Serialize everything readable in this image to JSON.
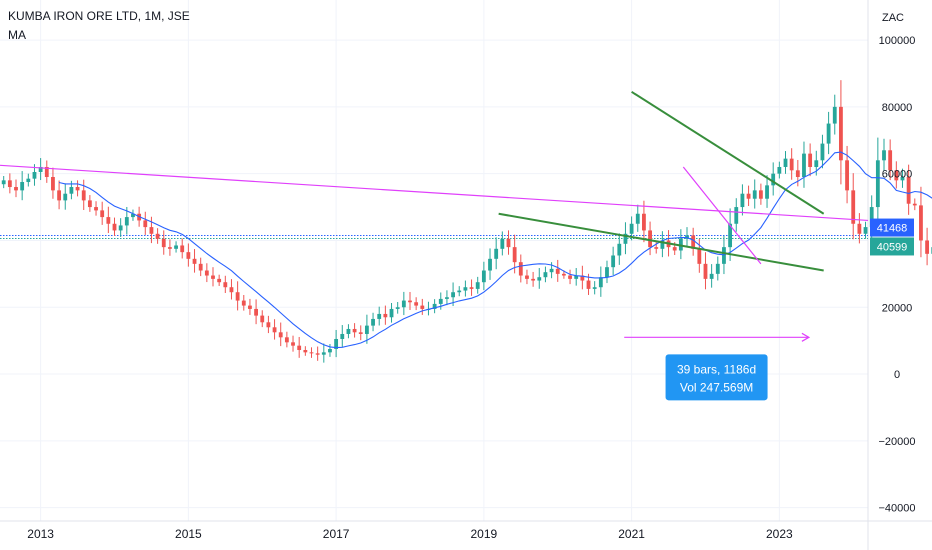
{
  "header": {
    "title": "KUMBA IRON ORE LTD, 1M, JSE",
    "indicator": "MA"
  },
  "colors": {
    "up": "#26a69a",
    "down": "#ef5350",
    "ma": "#2962ff",
    "trendline_green": "#388e3c",
    "trendline_magenta": "#e040fb",
    "price_line_blue": "#2962ff",
    "price_line_teal": "#26a69a",
    "callout_bg": "#2196f3",
    "measure_arrow": "#e040fb"
  },
  "chart_data": {
    "type": "candlestick",
    "currency": "ZAC",
    "ylim": [
      -44000,
      112000
    ],
    "y_ticks": [
      100000,
      80000,
      60000,
      40000,
      20000,
      0,
      -20000,
      -40000
    ],
    "y_tick_labels": [
      "100000",
      "80000",
      "60000",
      "",
      "20000",
      "0",
      "−20000",
      "−40000"
    ],
    "x_ticks": [
      2013,
      2015,
      2017,
      2019,
      2021,
      2023
    ],
    "x_tick_labels": [
      "2013",
      "2015",
      "2017",
      "2019",
      "2021",
      "2023"
    ],
    "xlim": [
      2012.45,
      2024.2
    ],
    "grid": true,
    "price_labels": [
      {
        "value": 41468,
        "label": "41468",
        "color": "#2962ff"
      },
      {
        "value": 40599,
        "label": "40599",
        "color": "#26a69a"
      }
    ],
    "closes": [
      58000,
      56000,
      55000,
      57500,
      58500,
      60500,
      62000,
      59000,
      55000,
      52000,
      54000,
      56000,
      55000,
      52000,
      50000,
      49000,
      47000,
      45000,
      43000,
      44500,
      47000,
      48000,
      46000,
      44000,
      42000,
      40500,
      38000,
      37500,
      38500,
      36500,
      34500,
      33000,
      31000,
      29500,
      28500,
      27500,
      26000,
      24500,
      22000,
      20500,
      19500,
      17500,
      15500,
      14000,
      12500,
      11000,
      9500,
      8500,
      7200,
      6500,
      6200,
      5800,
      6500,
      7500,
      10500,
      12000,
      13500,
      12500,
      12000,
      14500,
      16500,
      18000,
      17000,
      19500,
      20000,
      22000,
      21500,
      20500,
      19500,
      19500,
      21000,
      22500,
      23000,
      24500,
      25000,
      26000,
      25500,
      27500,
      31000,
      34500,
      37500,
      40500,
      38000,
      33500,
      29500,
      28500,
      28000,
      29000,
      30500,
      31500,
      30000,
      29500,
      28500,
      29500,
      28000,
      25500,
      26000,
      29000,
      32000,
      35500,
      39000,
      42000,
      45000,
      48000,
      43000,
      38000,
      37500,
      40000,
      38000,
      37000,
      40500,
      41500,
      37500,
      33000,
      28500,
      30000,
      33000,
      38000,
      45000,
      50000,
      54000,
      52500,
      55000,
      52500,
      56500,
      60000,
      62000,
      64500,
      61000,
      59000,
      66000,
      62000,
      64000,
      69000,
      75000,
      80000,
      64000,
      55000,
      45000,
      42000,
      44000,
      50000,
      64000,
      67000,
      61000,
      58000,
      59000,
      51000,
      50500,
      40000,
      36000,
      38000,
      40599
    ],
    "ma_period": 10,
    "trendlines": [
      {
        "name": "long-resistance",
        "color": "#e040fb",
        "from": [
          2012.45,
          62500
        ],
        "to": [
          2024.2,
          46000
        ]
      },
      {
        "name": "upper-wedge",
        "color": "#388e3c",
        "from": [
          2021.0,
          84500
        ],
        "to": [
          2023.6,
          48000
        ]
      },
      {
        "name": "lower-wedge",
        "color": "#388e3c",
        "from": [
          2019.2,
          48000
        ],
        "to": [
          2023.6,
          31000
        ]
      },
      {
        "name": "short-down",
        "color": "#e040fb",
        "from": [
          2021.7,
          62000
        ],
        "to": [
          2022.75,
          33000
        ]
      }
    ],
    "measure": {
      "from": [
        2020.9,
        11000
      ],
      "to": [
        2023.4,
        11000
      ],
      "label_bars": "39 bars, 1186d",
      "label_vol": "Vol 247.569M"
    }
  }
}
